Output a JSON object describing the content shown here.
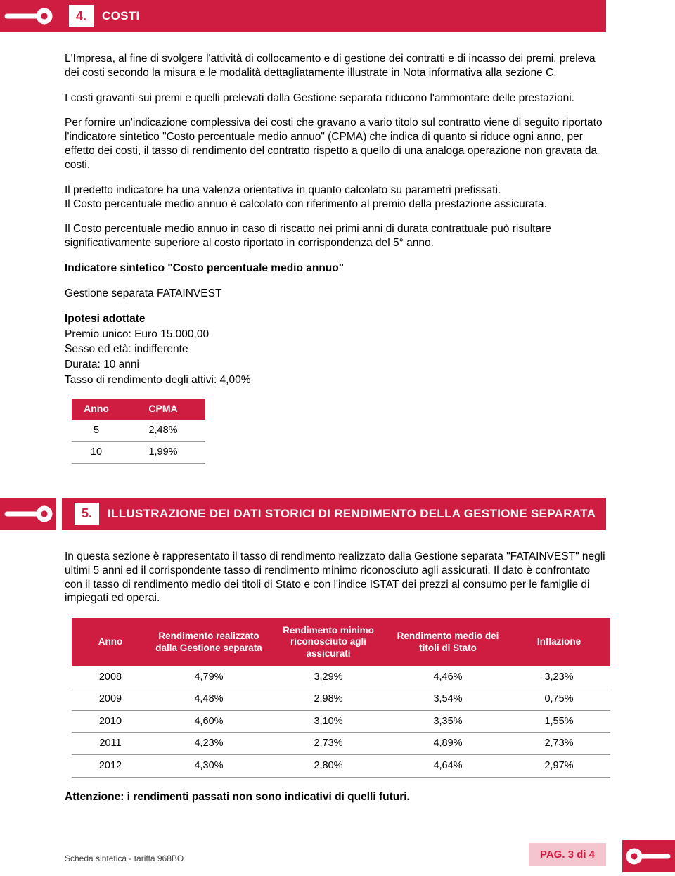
{
  "colors": {
    "brand": "#cf1d42",
    "footer_pag_bg": "#f5c5cf",
    "text": "#000000",
    "grid": "#999999"
  },
  "section4": {
    "num": "4.",
    "title": "COSTI",
    "p1a": "L'Impresa, al fine di svolgere l'attività di collocamento e di gestione dei contratti e di incasso dei premi, ",
    "p1b": "preleva dei costi secondo la misura e le modalità dettagliatamente illustrate in Nota informativa alla sezione C.",
    "p2": "I costi gravanti sui premi e quelli prelevati dalla Gestione separata riducono l'ammontare delle prestazioni.",
    "p3": "Per fornire un'indicazione complessiva dei costi che gravano a vario titolo sul contratto viene di seguito riportato l'indicatore sintetico \"Costo percentuale medio annuo\" (CPMA) che indica di quanto si riduce ogni anno, per effetto dei costi, il tasso di rendimento del contratto rispetto a quello di una analoga operazione non gravata da costi.",
    "p4a": "Il predetto indicatore ha una valenza orientativa in quanto calcolato su parametri prefissati.",
    "p4b": "Il Costo percentuale medio annuo è calcolato con riferimento al premio della prestazione assicurata.",
    "p5": "Il Costo percentuale medio annuo in caso di riscatto nei primi anni di durata contrattuale può risultare significativamente superiore al costo riportato in corrispondenza del 5° anno.",
    "indic_title": "Indicatore sintetico \"Costo percentuale medio annuo\"",
    "gest": "Gestione separata FATAINVEST",
    "ipotesi_h": "Ipotesi adottate",
    "ipotesi_1": "Premio unico: Euro 15.000,00",
    "ipotesi_2": "Sesso ed età: indifferente",
    "ipotesi_3": "Durata: 10 anni",
    "ipotesi_4": "Tasso di rendimento degli attivi: 4,00%",
    "cpma_table": {
      "columns": [
        "Anno",
        "CPMA"
      ],
      "rows": [
        [
          "5",
          "2,48%"
        ],
        [
          "10",
          "1,99%"
        ]
      ]
    }
  },
  "section5": {
    "num": "5.",
    "title": "ILLUSTRAZIONE DEI DATI STORICI DI RENDIMENTO DELLA GESTIONE SEPARATA",
    "intro": "In questa sezione è rappresentato il tasso di rendimento realizzato dalla Gestione separata \"FATAINVEST\" negli ultimi 5 anni ed il corrispondente tasso di rendimento minimo riconosciuto agli assicurati. Il dato è confrontato con il tasso di rendimento medio dei titoli di Stato e con l'indice ISTAT dei prezzi al consumo per le famiglie di impiegati ed operai.",
    "table": {
      "columns": [
        "Anno",
        "Rendimento realizzato dalla Gestione separata",
        "Rendimento minimo riconosciuto agli assicurati",
        "Rendimento medio dei titoli di Stato",
        "Inflazione"
      ],
      "rows": [
        [
          "2008",
          "4,79%",
          "3,29%",
          "4,46%",
          "3,23%"
        ],
        [
          "2009",
          "4,48%",
          "2,98%",
          "3,54%",
          "0,75%"
        ],
        [
          "2010",
          "4,60%",
          "3,10%",
          "3,35%",
          "1,55%"
        ],
        [
          "2011",
          "4,23%",
          "2,73%",
          "4,89%",
          "2,73%"
        ],
        [
          "2012",
          "4,30%",
          "2,80%",
          "4,64%",
          "2,97%"
        ]
      ]
    },
    "warning": "Attenzione: i rendimenti passati non sono indicativi di quelli futuri."
  },
  "footer": {
    "left": "Scheda sintetica - tariffa 968BO",
    "pag": "PAG. 3 di 4"
  }
}
